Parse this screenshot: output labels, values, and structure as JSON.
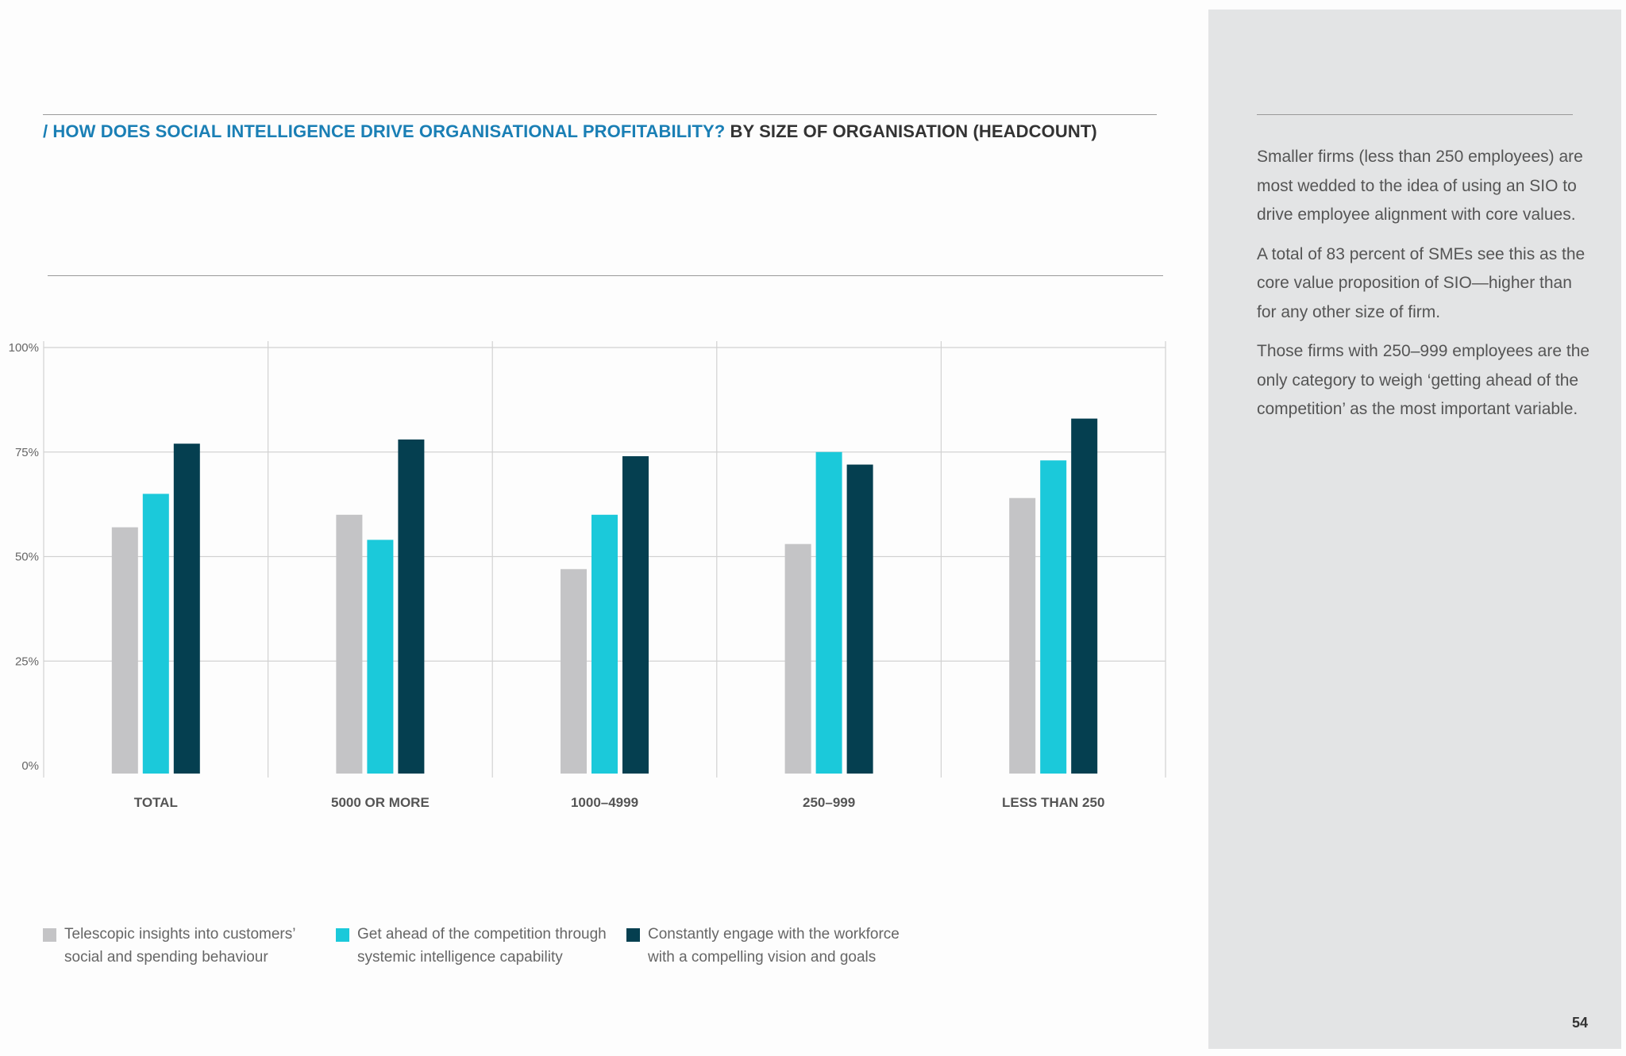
{
  "title": {
    "accent": "/ HOW DOES SOCIAL INTELLIGENCE DRIVE ORGANISATIONAL PROFITABILITY?",
    "rest": "BY SIZE OF ORGANISATION (HEADCOUNT)"
  },
  "chart_data": {
    "type": "bar",
    "title": "/ HOW DOES SOCIAL INTELLIGENCE DRIVE ORGANISATIONAL PROFITABILITY? BY SIZE OF ORGANISATION (HEADCOUNT)",
    "categories": [
      "TOTAL",
      "5000 OR MORE",
      "1000–4999",
      "250–999",
      "LESS THAN 250"
    ],
    "series": [
      {
        "name": "Telescopic insights into customers’ social and spending behaviour",
        "color": "#c4c4c6",
        "values": [
          57,
          60,
          47,
          53,
          64
        ]
      },
      {
        "name": "Get ahead of the competition through systemic intelligence capability",
        "color": "#1bc9da",
        "values": [
          65,
          54,
          60,
          75,
          73
        ]
      },
      {
        "name": "Constantly engage with the workforce with a compelling vision and goals",
        "color": "#053f50",
        "values": [
          77,
          78,
          74,
          72,
          83
        ]
      }
    ],
    "ylim": [
      0,
      100
    ],
    "yticks": [
      0,
      25,
      50,
      75,
      100
    ],
    "ytick_labels": [
      "0%",
      "25%",
      "50%",
      "75%",
      "100%"
    ],
    "grid": true,
    "legend_position": "bottom"
  },
  "sidebar": {
    "paragraphs": [
      "Smaller firms (less than 250 employees) are most wedded to the idea of using an SIO to drive employee alignment with core values.",
      "A total of 83 percent of SMEs see this as the core value proposition of SIO—higher than for any other size of firm.",
      "Those firms with 250–999 employees are the only category to weigh ‘getting ahead of the competition’ as the most important variable."
    ]
  },
  "page_number": "54"
}
